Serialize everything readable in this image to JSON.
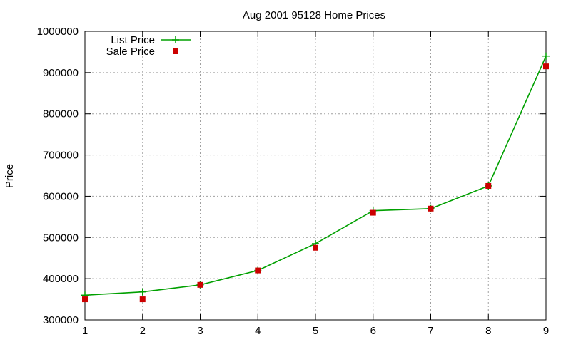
{
  "chart_data": {
    "type": "line",
    "title": "Aug 2001 95128 Home Prices",
    "xlabel": "",
    "ylabel": "Price",
    "x": [
      1,
      2,
      3,
      4,
      5,
      6,
      7,
      8,
      9
    ],
    "xlim": [
      1,
      9
    ],
    "ylim": [
      300000,
      1000000
    ],
    "xticks": [
      "1",
      "2",
      "3",
      "4",
      "5",
      "6",
      "7",
      "8",
      "9"
    ],
    "yticks": [
      "300000",
      "400000",
      "500000",
      "600000",
      "700000",
      "800000",
      "900000",
      "1000000"
    ],
    "grid": true,
    "legend_position": "top-left",
    "series": [
      {
        "name": "List Price",
        "style": "line-with-plus-markers",
        "color": "#00a000",
        "values": [
          360000,
          368000,
          385000,
          420000,
          485000,
          565000,
          570000,
          625000,
          940000
        ]
      },
      {
        "name": "Sale Price",
        "style": "square-markers",
        "color": "#cc0000",
        "values": [
          350000,
          350000,
          385000,
          420000,
          475000,
          560000,
          570000,
          625000,
          915000
        ]
      }
    ]
  }
}
